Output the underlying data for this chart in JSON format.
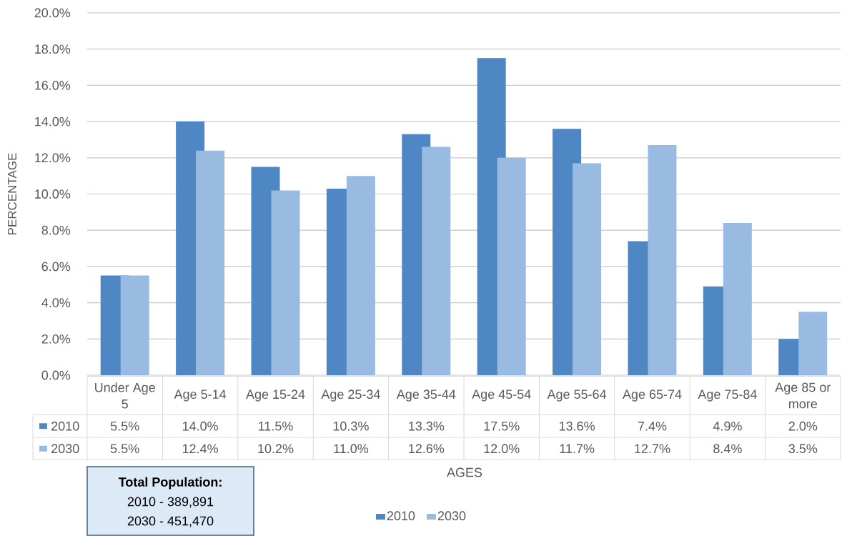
{
  "chart_data": {
    "type": "bar",
    "xlabel": "AGES",
    "ylabel": "PERCENTAGE",
    "categories": [
      "Under Age 5",
      "Age 5-14",
      "Age 15-24",
      "Age 25-34",
      "Age 35-44",
      "Age 45-54",
      "Age 55-64",
      "Age 65-74",
      "Age 75-84",
      "Age 85 or more"
    ],
    "series": [
      {
        "name": "2010",
        "color": "#4f87c5",
        "values": [
          5.5,
          14.0,
          11.5,
          10.3,
          13.3,
          17.5,
          13.6,
          7.4,
          4.9,
          2.0
        ],
        "value_labels": [
          "5.5%",
          "14.0%",
          "11.5%",
          "10.3%",
          "13.3%",
          "17.5%",
          "13.6%",
          "7.4%",
          "4.9%",
          "2.0%"
        ]
      },
      {
        "name": "2030",
        "color": "#9abbe1",
        "values": [
          5.5,
          12.4,
          10.2,
          11.0,
          12.6,
          12.0,
          11.7,
          12.7,
          8.4,
          3.5
        ],
        "value_labels": [
          "5.5%",
          "12.4%",
          "10.2%",
          "11.0%",
          "12.6%",
          "12.0%",
          "11.7%",
          "12.7%",
          "8.4%",
          "3.5%"
        ]
      }
    ],
    "ylim": [
      0,
      20
    ],
    "yticks": [
      {
        "value": 0,
        "label": "0.0%"
      },
      {
        "value": 2,
        "label": "2.0%"
      },
      {
        "value": 4,
        "label": "4.0%"
      },
      {
        "value": 6,
        "label": "6.0%"
      },
      {
        "value": 8,
        "label": "8.0%"
      },
      {
        "value": 10,
        "label": "10.0%"
      },
      {
        "value": 12,
        "label": "12.0%"
      },
      {
        "value": 14,
        "label": "14.0%"
      },
      {
        "value": 16,
        "label": "16.0%"
      },
      {
        "value": 18,
        "label": "18.0%"
      },
      {
        "value": 20,
        "label": "20.0%"
      }
    ],
    "grid": "y",
    "legend": "bottom",
    "annotations": [
      "Total Population:",
      "2010 - 389,891",
      "2030 - 451,470"
    ]
  }
}
